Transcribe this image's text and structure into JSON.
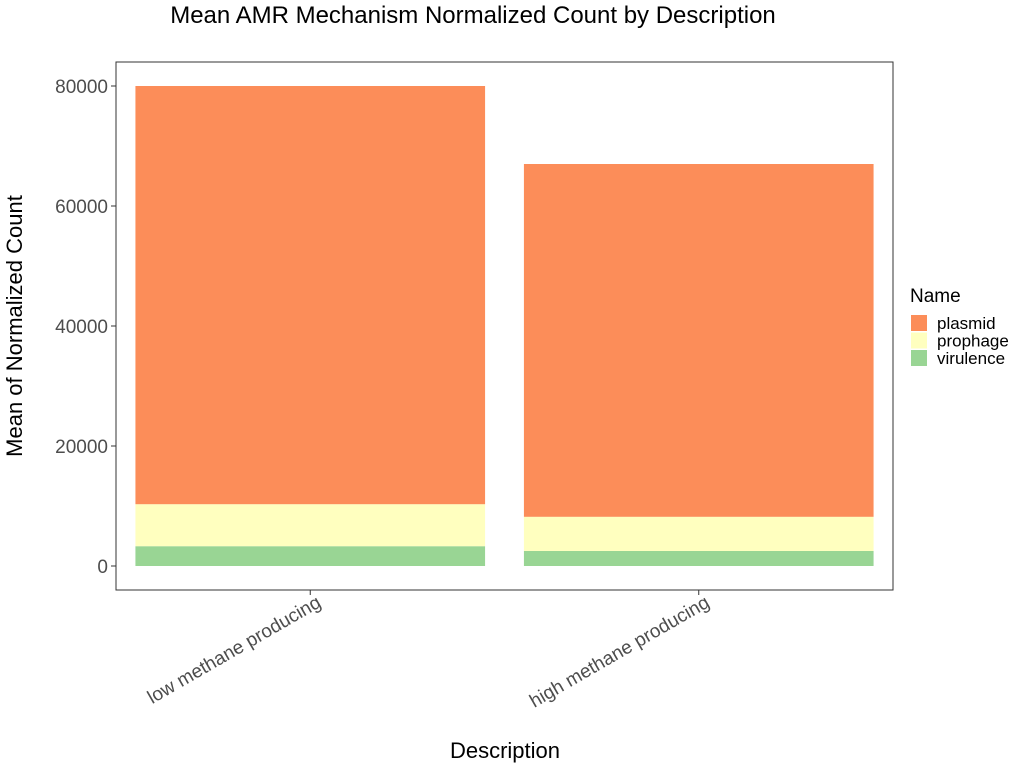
{
  "chart_data": {
    "type": "bar",
    "stacked": true,
    "title": "Mean AMR Mechanism Normalized Count by Description",
    "xlabel": "Description",
    "ylabel": "Mean of Normalized Count",
    "categories": [
      "low methane producing",
      "high methane producing"
    ],
    "series": [
      {
        "name": "virulence",
        "color": "#99d594",
        "values": [
          3300,
          2500
        ]
      },
      {
        "name": "prophage",
        "color": "#ffffbf",
        "values": [
          7000,
          5700
        ]
      },
      {
        "name": "plasmid",
        "color": "#fc8d59",
        "values": [
          69700,
          58800
        ]
      }
    ],
    "ylim": [
      0,
      84000
    ],
    "yticks": [
      0,
      20000,
      40000,
      60000,
      80000
    ],
    "grid": false,
    "legend": {
      "title": "Name",
      "position": "right",
      "entries": [
        "plasmid",
        "prophage",
        "virulence"
      ]
    }
  }
}
